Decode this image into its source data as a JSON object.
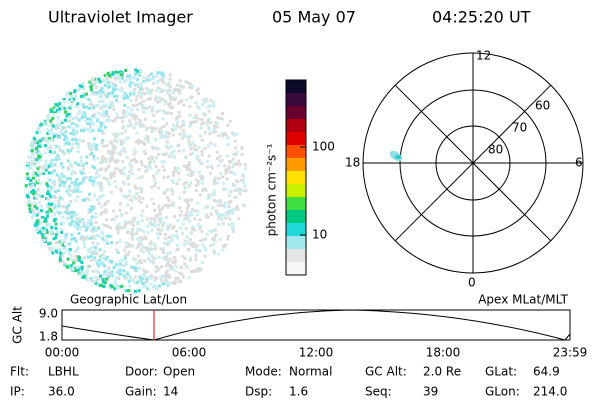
{
  "header": {
    "title": "Ultraviolet Imager",
    "date": "05 May 07",
    "time": "04:25:20 UT"
  },
  "colorbar": {
    "label": "photon cm⁻²s⁻¹",
    "ticks": [
      "100",
      "10"
    ]
  },
  "polar": {
    "mlt_labels": [
      "12",
      "6",
      "0",
      "18"
    ],
    "lat_labels": [
      "60",
      "70",
      "80"
    ]
  },
  "orbit": {
    "left_label": "Geographic Lat/Lon",
    "right_label": "Apex MLat/MLT",
    "y_label": "GC Alt",
    "yticks": [
      "9.0",
      "1.8"
    ],
    "xticks": [
      "00:00",
      "06:00",
      "12:00",
      "18:00",
      "23:59"
    ]
  },
  "footer": {
    "rows": [
      [
        {
          "label": "Flt:",
          "value": "LBHL"
        },
        {
          "label": "Door:",
          "value": "Open"
        },
        {
          "label": "Mode:",
          "value": "Normal"
        },
        {
          "label": "GC Alt:",
          "value": "2.0 Re"
        },
        {
          "label": "GLat:",
          "value": "64.9"
        }
      ],
      [
        {
          "label": "IP:",
          "value": "36.0"
        },
        {
          "label": "Gain:",
          "value": "14"
        },
        {
          "label": "Dsp:",
          "value": "1.6"
        },
        {
          "label": "Seq:",
          "value": "39"
        },
        {
          "label": "GLon:",
          "value": "214.0"
        }
      ]
    ]
  }
}
